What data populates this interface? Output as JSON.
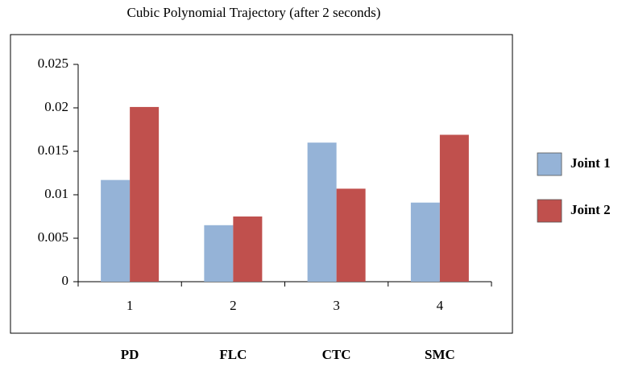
{
  "chart_data": {
    "type": "bar",
    "title": "Cubic Polynomial Trajectory (after 2 seconds)",
    "categories": [
      "1",
      "2",
      "3",
      "4"
    ],
    "group_labels": [
      "PD",
      "FLC",
      "CTC",
      "SMC"
    ],
    "series": [
      {
        "name": "Joint 1",
        "color": "#95b3d7",
        "values": [
          0.0117,
          0.0065,
          0.016,
          0.0091
        ]
      },
      {
        "name": "Joint 2",
        "color": "#c0504d",
        "values": [
          0.0201,
          0.0075,
          0.0107,
          0.0169
        ]
      }
    ],
    "ylim": [
      0,
      0.025
    ],
    "yticks": [
      0,
      0.005,
      0.01,
      0.015,
      0.02,
      0.025
    ],
    "grid": false,
    "legend": "right"
  }
}
